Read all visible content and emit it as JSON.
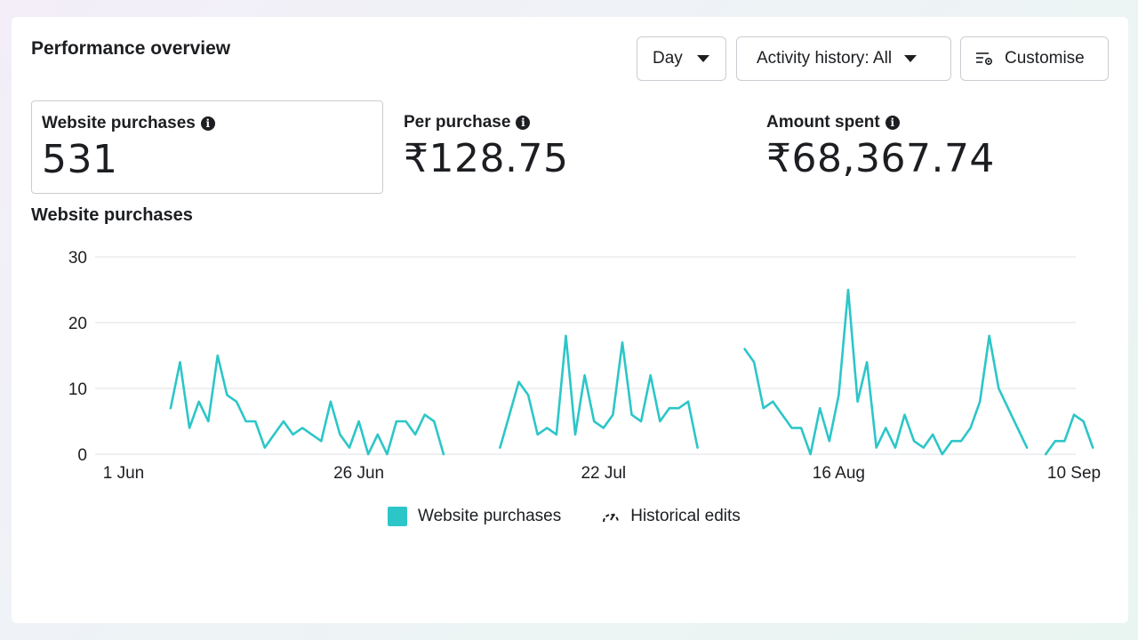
{
  "header": {
    "title": "Performance overview",
    "day_label": "Day",
    "activity_label": "Activity history: All",
    "customise_label": "Customise"
  },
  "metrics": [
    {
      "label": "Website purchases",
      "value": "531"
    },
    {
      "label": "Per purchase",
      "value": "₹128.75"
    },
    {
      "label": "Amount spent",
      "value": "₹68,367.74"
    }
  ],
  "chart_title": "Website purchases",
  "legend": {
    "series_label": "Website purchases",
    "edits_label": "Historical edits"
  },
  "colors": {
    "series": "#2cc6c8",
    "grid": "#e4e6eb"
  },
  "icons": [
    "info-icon",
    "caret-down-icon",
    "customise-icon",
    "historical-edits-icon"
  ],
  "chart_data": {
    "type": "line",
    "title": "Website purchases",
    "xlabel": "",
    "ylabel": "",
    "ylim": [
      0,
      30
    ],
    "yticks": [
      0,
      10,
      20,
      30
    ],
    "xtick_labels": [
      {
        "label": "1 Jun",
        "day": 0
      },
      {
        "label": "26 Jun",
        "day": 25
      },
      {
        "label": "22 Jul",
        "day": 51
      },
      {
        "label": "16 Aug",
        "day": 76
      },
      {
        "label": "10 Sep",
        "day": 101
      }
    ],
    "grid": true,
    "series": [
      {
        "name": "Website purchases",
        "segments": [
          {
            "start_day": 5,
            "values": [
              7,
              14,
              4,
              8,
              5,
              15,
              9,
              8,
              5,
              5,
              1,
              3,
              5,
              3,
              4,
              3,
              2,
              8,
              3,
              1,
              5,
              0,
              3,
              0,
              5,
              5,
              3,
              6,
              5,
              0
            ]
          },
          {
            "start_day": 40,
            "values": [
              1,
              6,
              11,
              9,
              3,
              4,
              3,
              18,
              3,
              12,
              5,
              4,
              6,
              17,
              6,
              5,
              12,
              5,
              7,
              7,
              8,
              1
            ]
          },
          {
            "start_day": 66,
            "values": [
              16,
              14,
              7,
              8,
              6,
              4,
              4,
              0,
              7,
              2,
              9,
              25,
              8,
              14,
              1,
              4,
              1,
              6,
              2,
              1,
              3,
              0,
              2,
              2,
              4,
              8,
              18,
              10,
              7,
              4,
              1
            ]
          },
          {
            "start_day": 98,
            "values": [
              0,
              2,
              2,
              6,
              5,
              1
            ]
          }
        ]
      }
    ]
  }
}
